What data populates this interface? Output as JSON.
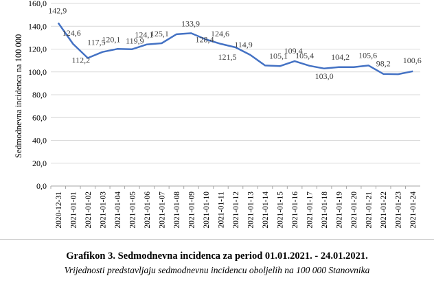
{
  "chart_data": {
    "type": "line",
    "ylabel": "Sedmodnevna incidenca na 100 000",
    "xlabel": "",
    "ylim": [
      0,
      160
    ],
    "yticks": [
      "0,0",
      "20,0",
      "40,0",
      "60,0",
      "80,0",
      "100,0",
      "120,0",
      "140,0",
      "160,0"
    ],
    "grid": true,
    "categories": [
      "2020-12-31",
      "2021-01-01",
      "2021-01-02",
      "2021-01-03",
      "2021-01-04",
      "2021-01-05",
      "2021-01-06",
      "2021-01-07",
      "2021-01-08",
      "2021-01-09",
      "2021-01-10",
      "2021-01-11",
      "2021-01-12",
      "2021-01-13",
      "2021-01-14",
      "2021-01-15",
      "2021-01-16",
      "2021-01-17",
      "2021-01-18",
      "2021-01-19",
      "2021-01-20",
      "2021-01-21",
      "2021-01-22",
      "2021-01-23",
      "2021-01-24"
    ],
    "values": [
      142.9,
      124.6,
      112.2,
      117.5,
      120.1,
      119.9,
      124.1,
      125.1,
      133.0,
      133.9,
      128.4,
      124.6,
      121.5,
      114.9,
      105.6,
      105.1,
      109.4,
      105.4,
      103.0,
      104.2,
      104.2,
      105.6,
      98.2,
      98.0,
      100.6
    ],
    "data_labels": [
      {
        "index": 0,
        "text": "142,9"
      },
      {
        "index": 1,
        "text": "124,6"
      },
      {
        "index": 2,
        "text": "112,2"
      },
      {
        "index": 3,
        "text": "117,5"
      },
      {
        "index": 4,
        "text": "120,1"
      },
      {
        "index": 5,
        "text": "119,9"
      },
      {
        "index": 6,
        "text": "124,1"
      },
      {
        "index": 7,
        "text": "125,1"
      },
      {
        "index": 9,
        "text": "133,9"
      },
      {
        "index": 10,
        "text": "128,4"
      },
      {
        "index": 11,
        "text": "124,6"
      },
      {
        "index": 12,
        "text": "121,5"
      },
      {
        "index": 13,
        "text": "114,9"
      },
      {
        "index": 15,
        "text": "105,1"
      },
      {
        "index": 16,
        "text": "109,4"
      },
      {
        "index": 17,
        "text": "105,4"
      },
      {
        "index": 18,
        "text": "103,0"
      },
      {
        "index": 19,
        "text": "104,2"
      },
      {
        "index": 21,
        "text": "105,6"
      },
      {
        "index": 22,
        "text": "98,2"
      },
      {
        "index": 24,
        "text": "100,6"
      }
    ],
    "line_color": "#4472c4",
    "grid_color": "#d9d9d9"
  },
  "caption": {
    "title": "Grafikon 3. Sedmodnevna incidenca za period 01.01.2021. - 24.01.2021.",
    "subtitle": "Vrijednosti predstavljaju sedmodnevnu incidencu oboljelih na 100 000 Stanovnika"
  }
}
